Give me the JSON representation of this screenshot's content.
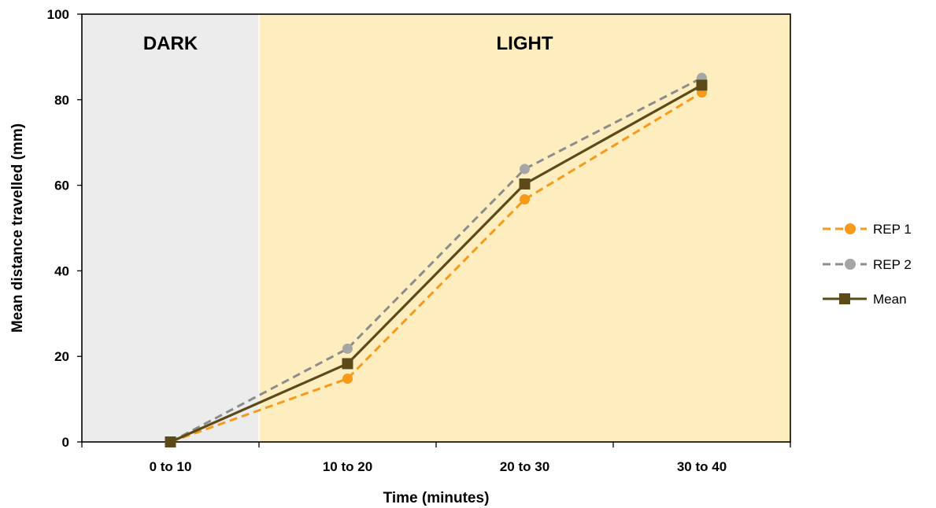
{
  "chart_data": {
    "type": "line",
    "title": "",
    "xlabel": "Time (minutes)",
    "ylabel": "Mean distance travelled (mm)",
    "categories": [
      "0 to 10",
      "10 to 20",
      "20 to 30",
      "30 to 40"
    ],
    "ylim": [
      0,
      100
    ],
    "yticks": [
      0,
      20,
      40,
      60,
      80,
      100
    ],
    "regions": [
      {
        "label": "DARK",
        "color": "#ececec"
      },
      {
        "label": "LIGHT",
        "color": "#feeebf"
      }
    ],
    "series": [
      {
        "name": "REP 1",
        "values": [
          0,
          14.8,
          56.7,
          81.7
        ],
        "color": "#f79a1a",
        "line_style": "dashed",
        "marker": "circle"
      },
      {
        "name": "REP 2",
        "values": [
          0,
          21.8,
          63.8,
          85.1
        ],
        "color": "#a6a6a6",
        "line_color": "#8c8c8c",
        "line_style": "dashed",
        "marker": "circle"
      },
      {
        "name": "Mean",
        "values": [
          0,
          18.3,
          60.3,
          83.4
        ],
        "color": "#5c4a18",
        "line_style": "solid",
        "marker": "square"
      }
    ],
    "legend_position": "right",
    "grid": false
  }
}
